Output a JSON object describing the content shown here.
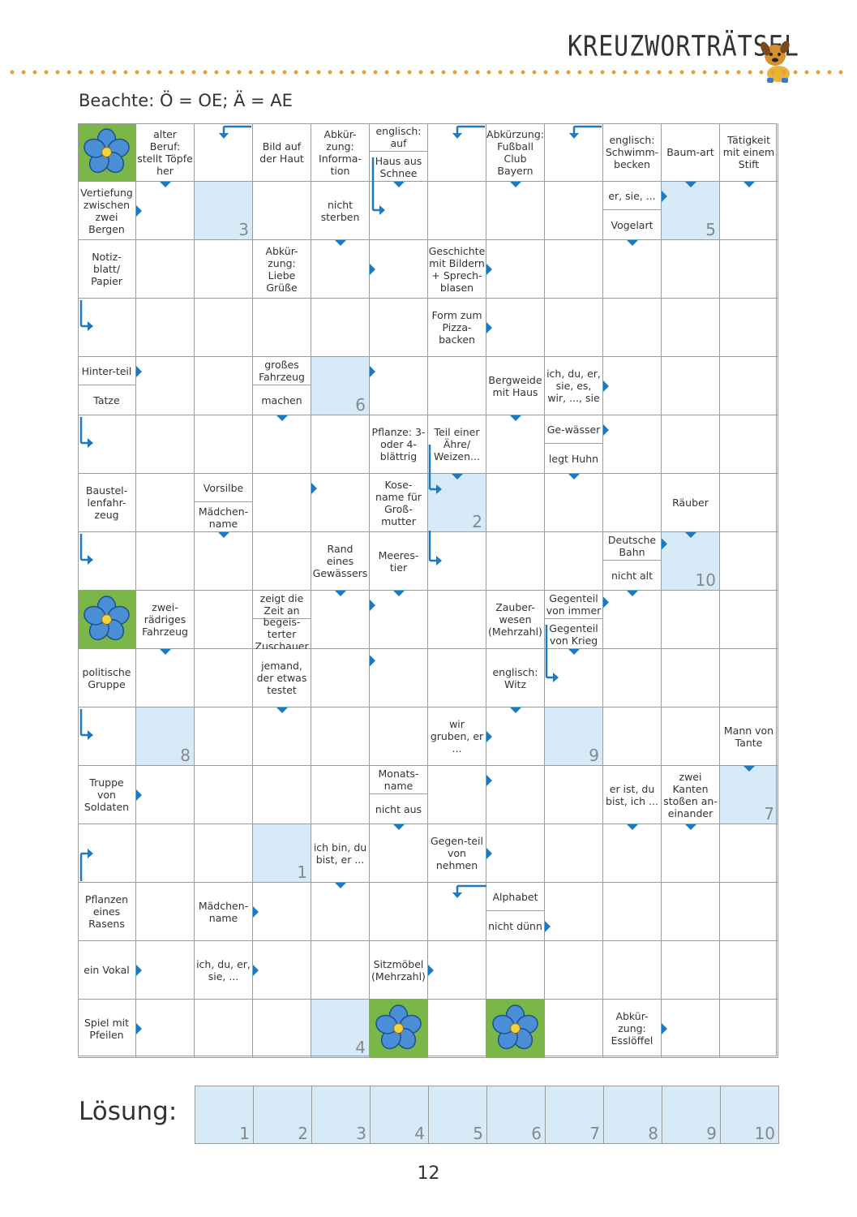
{
  "header": {
    "title": "KREUZWORTRÄTSEL"
  },
  "note": "Beachte: Ö = OE; Ä = AE",
  "clues": [
    {
      "r": 0,
      "c": 1,
      "text": "alter Beruf: stellt Töpfe her"
    },
    {
      "r": 0,
      "c": 3,
      "text": "Bild auf der Haut"
    },
    {
      "r": 0,
      "c": 4,
      "text": "Abkür-zung: Informa-tion"
    },
    {
      "r": 0,
      "c": 5,
      "part": "top",
      "text": "englisch: auf"
    },
    {
      "r": 0,
      "c": 5,
      "part": "bottom",
      "text": "Haus aus Schnee"
    },
    {
      "r": 0,
      "c": 7,
      "text": "Abkürzung: Fußball Club Bayern"
    },
    {
      "r": 0,
      "c": 9,
      "text": "englisch: Schwimm-becken"
    },
    {
      "r": 0,
      "c": 10,
      "text": "Baum-art"
    },
    {
      "r": 0,
      "c": 11,
      "text": "Tätigkeit mit einem Stift"
    },
    {
      "r": 1,
      "c": 0,
      "text": "Vertiefung zwischen zwei Bergen"
    },
    {
      "r": 1,
      "c": 4,
      "text": "nicht sterben"
    },
    {
      "r": 1,
      "c": 9,
      "part": "top",
      "text": "er, sie, ..."
    },
    {
      "r": 1,
      "c": 9,
      "part": "bottom",
      "text": "Vogelart"
    },
    {
      "r": 2,
      "c": 0,
      "text": "Notiz-blatt/ Papier"
    },
    {
      "r": 2,
      "c": 3,
      "text": "Abkür-zung: Liebe Grüße"
    },
    {
      "r": 2,
      "c": 6,
      "text": "Geschichte mit Bildern + Sprech-blasen"
    },
    {
      "r": 3,
      "c": 6,
      "text": "Form zum Pizza-backen"
    },
    {
      "r": 4,
      "c": 0,
      "part": "top",
      "text": "Hinter-teil"
    },
    {
      "r": 4,
      "c": 0,
      "part": "bottom",
      "text": "Tatze"
    },
    {
      "r": 4,
      "c": 3,
      "part": "top",
      "text": "großes Fahrzeug"
    },
    {
      "r": 4,
      "c": 3,
      "part": "bottom",
      "text": "machen"
    },
    {
      "r": 4,
      "c": 7,
      "text": "Bergweide mit Haus"
    },
    {
      "r": 4,
      "c": 8,
      "text": "ich, du, er, sie, es, wir, ..., sie"
    },
    {
      "r": 5,
      "c": 5,
      "text": "Pflanze: 3-oder 4-blättrig"
    },
    {
      "r": 5,
      "c": 6,
      "text": "Teil einer Ähre/ Weizen..."
    },
    {
      "r": 5,
      "c": 8,
      "part": "top",
      "text": "Ge-wässer"
    },
    {
      "r": 5,
      "c": 8,
      "part": "bottom",
      "text": "legt Huhn"
    },
    {
      "r": 6,
      "c": 0,
      "text": "Baustel-lenfahr-zeug"
    },
    {
      "r": 6,
      "c": 2,
      "part": "top",
      "text": "Vorsilbe"
    },
    {
      "r": 6,
      "c": 2,
      "part": "bottom",
      "text": "Mädchen-name"
    },
    {
      "r": 6,
      "c": 5,
      "text": "Kose-name für Groß-mutter"
    },
    {
      "r": 6,
      "c": 10,
      "text": "Räuber"
    },
    {
      "r": 7,
      "c": 4,
      "text": "Rand eines Gewässers"
    },
    {
      "r": 7,
      "c": 5,
      "text": "Meeres-tier"
    },
    {
      "r": 7,
      "c": 9,
      "part": "top",
      "text": "Deutsche Bahn"
    },
    {
      "r": 7,
      "c": 9,
      "part": "bottom",
      "text": "nicht alt"
    },
    {
      "r": 8,
      "c": 1,
      "text": "zwei-rädriges Fahrzeug"
    },
    {
      "r": 8,
      "c": 3,
      "part": "top",
      "text": "zeigt die Zeit an"
    },
    {
      "r": 8,
      "c": 7,
      "text": "Zauber-wesen (Mehrzahl)"
    },
    {
      "r": 8,
      "c": 8,
      "part": "top",
      "text": "Gegenteil von immer"
    },
    {
      "r": 8,
      "c": 8,
      "part": "bottom",
      "text": "Gegenteil von Krieg"
    },
    {
      "r": 8,
      "c": 3,
      "part": "bottom",
      "text": "begeis-terter Zuschauer"
    },
    {
      "r": 9,
      "c": 0,
      "text": "politische Gruppe"
    },
    {
      "r": 9,
      "c": 3,
      "text": "jemand, der etwas testet"
    },
    {
      "r": 9,
      "c": 7,
      "text": "englisch: Witz"
    },
    {
      "r": 10,
      "c": 6,
      "text": "wir gruben, er ..."
    },
    {
      "r": 10,
      "c": 11,
      "text": "Mann von Tante"
    },
    {
      "r": 11,
      "c": 0,
      "text": "Truppe von Soldaten"
    },
    {
      "r": 11,
      "c": 5,
      "part": "top",
      "text": "Monats-name"
    },
    {
      "r": 11,
      "c": 5,
      "part": "bottom",
      "text": "nicht aus"
    },
    {
      "r": 11,
      "c": 9,
      "text": "er ist, du bist, ich ..."
    },
    {
      "r": 11,
      "c": 10,
      "text": "zwei Kanten stoßen an-einander"
    },
    {
      "r": 12,
      "c": 4,
      "text": "ich bin, du bist, er ..."
    },
    {
      "r": 12,
      "c": 6,
      "text": "Gegen-teil von nehmen"
    },
    {
      "r": 13,
      "c": 0,
      "text": "Pflanzen eines Rasens"
    },
    {
      "r": 13,
      "c": 2,
      "text": "Mädchen-name"
    },
    {
      "r": 13,
      "c": 7,
      "part": "top",
      "text": "Alphabet"
    },
    {
      "r": 13,
      "c": 7,
      "part": "bottom",
      "text": "nicht dünn"
    },
    {
      "r": 14,
      "c": 0,
      "text": "ein Vokal"
    },
    {
      "r": 14,
      "c": 2,
      "text": "ich, du, er, sie, ..."
    },
    {
      "r": 14,
      "c": 5,
      "text": "Sitzmöbel (Mehrzahl)"
    },
    {
      "r": 15,
      "c": 0,
      "text": "Spiel mit Pfeilen"
    },
    {
      "r": 15,
      "c": 9,
      "text": "Abkür-zung: Esslöffel"
    }
  ],
  "solution_cells": [
    {
      "r": 1,
      "c": 2,
      "n": "3"
    },
    {
      "r": 1,
      "c": 10,
      "n": "5"
    },
    {
      "r": 4,
      "c": 4,
      "n": "6"
    },
    {
      "r": 6,
      "c": 6,
      "n": "2"
    },
    {
      "r": 7,
      "c": 10,
      "n": "10"
    },
    {
      "r": 10,
      "c": 1,
      "n": "8"
    },
    {
      "r": 10,
      "c": 8,
      "n": "9"
    },
    {
      "r": 11,
      "c": 11,
      "n": "7"
    },
    {
      "r": 12,
      "c": 3,
      "n": "1"
    },
    {
      "r": 15,
      "c": 4,
      "n": "4"
    }
  ],
  "flowers": [
    {
      "r": 0,
      "c": 0
    },
    {
      "r": 8,
      "c": 0
    },
    {
      "r": 15,
      "c": 5
    },
    {
      "r": 15,
      "c": 7
    }
  ],
  "solution": {
    "label": "Lösung:",
    "numbers": [
      "1",
      "2",
      "3",
      "4",
      "5",
      "6",
      "7",
      "8",
      "9",
      "10"
    ]
  },
  "page_number": "12",
  "colors": {
    "blue_cell": "#d7eaf8",
    "arrow": "#1e7ac0",
    "flower_bg": "#7ab648",
    "dots": "#e8993a"
  }
}
